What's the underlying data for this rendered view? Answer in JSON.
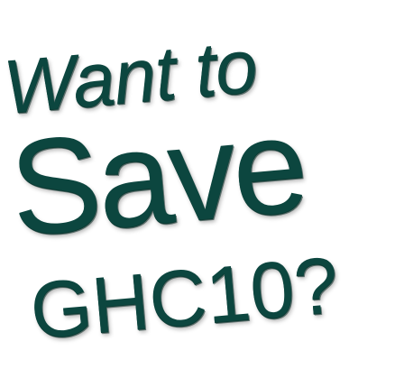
{
  "headline": {
    "line_1": "Want to",
    "line_2": "Save",
    "line_3": "GHC10?"
  },
  "colors": {
    "text": "#0c463f",
    "background": "#ffffff"
  }
}
